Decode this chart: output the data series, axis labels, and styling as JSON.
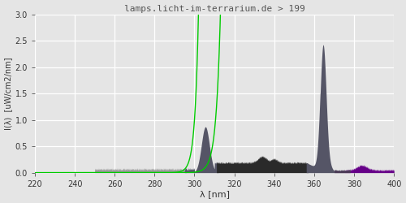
{
  "title": "lamps.licht-im-terrarium.de > 199",
  "xlabel": "λ [nm]",
  "ylabel": "I(λ)  [uW/cm2/nm]",
  "xlim": [
    220,
    400
  ],
  "ylim": [
    0.0,
    3.0
  ],
  "yticks": [
    0.0,
    0.5,
    1.0,
    1.5,
    2.0,
    2.5,
    3.0
  ],
  "xticks": [
    220,
    240,
    260,
    280,
    300,
    320,
    340,
    360,
    380,
    400
  ],
  "background_color": "#e5e5e5",
  "plot_bg_color": "#e5e5e5",
  "grid_color": "#ffffff",
  "title_color": "#555555",
  "spectrum_gray_color": "#888888",
  "spectrum_dark_color": "#444444",
  "spectrum_black_color": "#222222",
  "peak365_color": "#555566",
  "green_color": "#00cc00",
  "purple_color": "#660088"
}
